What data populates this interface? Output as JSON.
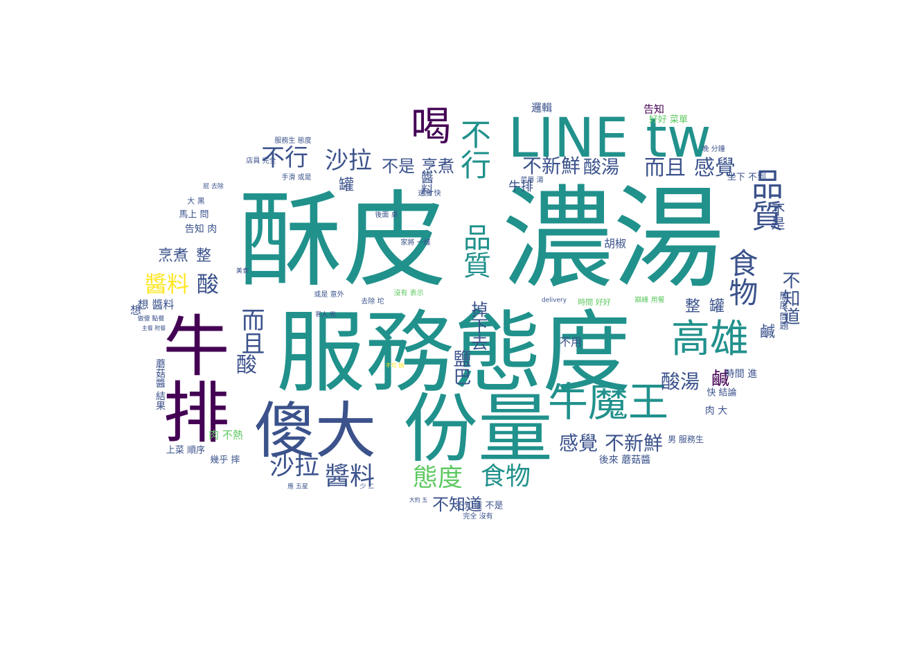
{
  "colors": {
    "background": "#ffffff",
    "palette": [
      "#440154",
      "#3b528b",
      "#21918c",
      "#5ec962",
      "#fde725"
    ]
  },
  "words": [
    {
      "text": "濃湯",
      "weight": 100,
      "color": "#21918c"
    },
    {
      "text": "服務態度",
      "weight": 95,
      "color": "#21918c"
    },
    {
      "text": "酥皮",
      "weight": 92,
      "color": "#21918c"
    },
    {
      "text": "份量",
      "weight": 75,
      "color": "#21918c"
    },
    {
      "text": "牛排",
      "weight": 70,
      "color": "#440154"
    },
    {
      "text": "傻大",
      "weight": 66,
      "color": "#3b528b"
    },
    {
      "text": "LINE tw",
      "weight": 62,
      "color": "#21918c"
    },
    {
      "text": "牛魔王",
      "weight": 48,
      "color": "#21918c"
    },
    {
      "text": "高雄",
      "weight": 46,
      "color": "#21918c"
    },
    {
      "text": "喝",
      "weight": 44,
      "color": "#440154"
    },
    {
      "text": "品質",
      "weight": 40,
      "color": "#3b528b"
    },
    {
      "text": "不行",
      "weight": 38,
      "color": "#21918c"
    },
    {
      "text": "食物",
      "weight": 36,
      "color": "#3b528b"
    },
    {
      "text": "品質",
      "weight": 34,
      "color": "#21918c"
    },
    {
      "text": "沙拉",
      "weight": 32,
      "color": "#3b528b"
    },
    {
      "text": "醬料",
      "weight": 32,
      "color": "#3b528b"
    },
    {
      "text": "態度",
      "weight": 32,
      "color": "#5ec962"
    },
    {
      "text": "食物",
      "weight": 32,
      "color": "#21918c"
    },
    {
      "text": "不行",
      "weight": 30,
      "color": "#3b528b"
    },
    {
      "text": "沙拉",
      "weight": 30,
      "color": "#3b528b"
    },
    {
      "text": "而且",
      "weight": 29,
      "color": "#3b528b"
    },
    {
      "text": "醬料",
      "weight": 29,
      "color": "#fde725"
    },
    {
      "text": "酸",
      "weight": 29,
      "color": "#3b528b"
    },
    {
      "text": "而且",
      "weight": 28,
      "color": "#3b528b"
    },
    {
      "text": "酸",
      "weight": 27,
      "color": "#3b528b"
    },
    {
      "text": "感覺",
      "weight": 27,
      "color": "#3b528b"
    },
    {
      "text": "酸湯",
      "weight": 26,
      "color": "#3b528b"
    },
    {
      "text": "不新鮮",
      "weight": 26,
      "color": "#3b528b"
    },
    {
      "text": "感覺",
      "weight": 26,
      "color": "#3b528b"
    },
    {
      "text": "不新鮮",
      "weight": 25,
      "color": "#3b528b"
    },
    {
      "text": "不知道",
      "weight": 24,
      "color": "#3b528b"
    },
    {
      "text": "鹹",
      "weight": 24,
      "color": "#440154"
    },
    {
      "text": "不知道",
      "weight": 23,
      "color": "#3b528b"
    },
    {
      "text": "酸湯",
      "weight": 23,
      "color": "#3b528b"
    },
    {
      "text": "鹽巴",
      "weight": 22,
      "color": "#3b528b"
    },
    {
      "text": "掉下去",
      "weight": 22,
      "color": "#3b528b"
    },
    {
      "text": "不是",
      "weight": 21,
      "color": "#3b528b"
    },
    {
      "text": "烹煮",
      "weight": 21,
      "color": "#3b528b"
    },
    {
      "text": "罐",
      "weight": 20,
      "color": "#3b528b"
    },
    {
      "text": "整",
      "weight": 20,
      "color": "#3b528b"
    },
    {
      "text": "鹹",
      "weight": 19,
      "color": "#3b528b"
    },
    {
      "text": "烹煮",
      "weight": 18,
      "color": "#3b528b"
    },
    {
      "text": "整",
      "weight": 18,
      "color": "#3b528b"
    },
    {
      "text": "罐",
      "weight": 18,
      "color": "#3b528b"
    },
    {
      "text": "不是",
      "weight": 17,
      "color": "#3b528b"
    },
    {
      "text": "牛排",
      "weight": 16,
      "color": "#3b528b"
    },
    {
      "text": "邏輯",
      "weight": 15,
      "color": "#3b528b"
    },
    {
      "text": "醬料",
      "weight": 15,
      "color": "#440154"
    },
    {
      "text": "告知",
      "weight": 14,
      "color": "#440154"
    },
    {
      "text": "胡椒",
      "weight": 14,
      "color": "#3b528b"
    },
    {
      "text": "不用",
      "weight": 14,
      "color": "#3b528b"
    },
    {
      "text": "想",
      "weight": 14,
      "color": "#3b528b"
    },
    {
      "text": "肉 大",
      "weight": 13,
      "color": "#3b528b"
    },
    {
      "text": "時間 進",
      "weight": 13,
      "color": "#3b528b"
    },
    {
      "text": "後來 蘑菇醬",
      "weight": 13,
      "color": "#3b528b"
    },
    {
      "text": "肉 不熱",
      "weight": 13,
      "color": "#5ec962"
    },
    {
      "text": "上菜 順序",
      "weight": 12,
      "color": "#3b528b"
    },
    {
      "text": "幾乎 摔",
      "weight": 12,
      "color": "#3b528b"
    },
    {
      "text": "馬上 問",
      "weight": 12,
      "color": "#3b528b"
    },
    {
      "text": "告知 肉",
      "weight": 12,
      "color": "#3b528b"
    },
    {
      "text": "好好 菜單",
      "weight": 12,
      "color": "#5ec962"
    },
    {
      "text": "坐下 不到",
      "weight": 12,
      "color": "#3b528b"
    },
    {
      "text": "快 結論",
      "weight": 12,
      "color": "#3b528b"
    },
    {
      "text": "男 服務生",
      "weight": 11,
      "color": "#3b528b"
    },
    {
      "text": "蘑菇醬 結果",
      "weight": 12,
      "color": "#3b528b"
    },
    {
      "text": "態度 問題",
      "weight": 11,
      "color": "#3b528b"
    },
    {
      "text": "服務生 態度",
      "weight": 9,
      "color": "#3b528b"
    },
    {
      "text": "店員 完全",
      "weight": 9,
      "color": "#3b528b"
    },
    {
      "text": "手滑 或是",
      "weight": 9,
      "color": "#3b528b"
    },
    {
      "text": "或是 意外",
      "weight": 9,
      "color": "#3b528b"
    },
    {
      "text": "沒有 表示",
      "weight": 9,
      "color": "#5ec962"
    },
    {
      "text": "家將 一樣",
      "weight": 9,
      "color": "#3b528b"
    },
    {
      "text": "後面 桌",
      "weight": 9,
      "color": "#3b528b"
    },
    {
      "text": "時間 好好",
      "weight": 9,
      "color": "#5ec962"
    },
    {
      "text": "巔峰 用餐",
      "weight": 9,
      "color": "#5ec962"
    },
    {
      "text": "delivery",
      "weight": 8,
      "color": "#3b528b"
    },
    {
      "text": "去除 坨",
      "weight": 9,
      "color": "#3b528b"
    },
    {
      "text": "客人 兇",
      "weight": 8,
      "color": "#3b528b"
    },
    {
      "text": "不知道 不是",
      "weight": 12,
      "color": "#3b528b"
    },
    {
      "text": "完全 沒有",
      "weight": 9,
      "color": "#3b528b"
    },
    {
      "text": "少 二",
      "weight": 8,
      "color": "#3b528b"
    },
    {
      "text": "應 五星",
      "weight": 8,
      "color": "#3b528b"
    },
    {
      "text": "速度 快",
      "weight": 9,
      "color": "#3b528b"
    },
    {
      "text": "菜單 湯",
      "weight": 9,
      "color": "#3b528b"
    },
    {
      "text": "晚 分鐘",
      "weight": 9,
      "color": "#3b528b"
    },
    {
      "text": "美食",
      "weight": 8,
      "color": "#3b528b"
    },
    {
      "text": "大 黑",
      "weight": 9,
      "color": "#3b528b"
    },
    {
      "text": "屁 去除",
      "weight": 8,
      "color": "#3b528b"
    },
    {
      "text": "做傻 點餐",
      "weight": 8,
      "color": "#3b528b"
    },
    {
      "text": "主餐 附餐",
      "weight": 7,
      "color": "#3b528b"
    },
    {
      "text": "不可 鍋",
      "weight": 7,
      "color": "#fde725"
    },
    {
      "text": "大約 五",
      "weight": 7,
      "color": "#3b528b"
    },
    {
      "text": "想 醬料",
      "weight": 13,
      "color": "#3b528b"
    }
  ]
}
